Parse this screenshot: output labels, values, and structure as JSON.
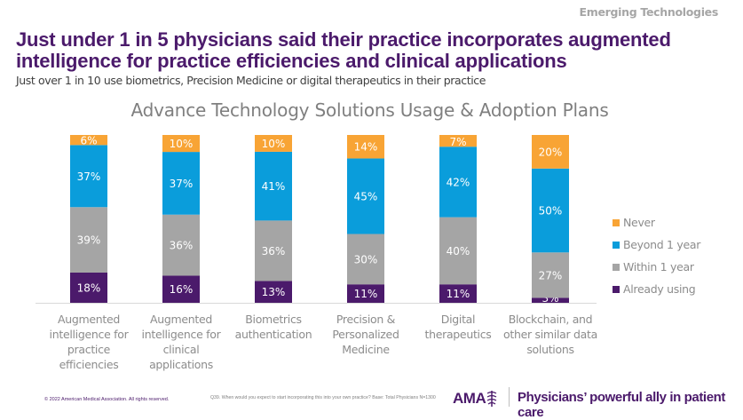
{
  "header": {
    "section_label": "Emerging Technologies",
    "headline": "Just under 1 in 5 physicians said their practice incorporates augmented intelligence for practice efficiencies and clinical applications",
    "subhead": "Just over 1 in 10 use biometrics, Precision Medicine or digital therapeutics in their practice"
  },
  "chart_data": {
    "type": "bar",
    "stacked": true,
    "title": "Advance Technology Solutions Usage & Adoption Plans",
    "xlabel": "",
    "ylabel": "",
    "ylim": [
      0,
      100
    ],
    "grid": false,
    "legend_position": "right",
    "categories": [
      "Augmented intelligence for practice efficiencies",
      "Augmented intelligence for clinical applications",
      "Biometrics authentication",
      "Precision & Personalized Medicine",
      "Digital therapeutics",
      "Blockchain, and other similar data solutions"
    ],
    "category_lines": [
      [
        "Augmented",
        "intelligence for",
        "practice",
        "efficiencies"
      ],
      [
        "Augmented",
        "intelligence for",
        "clinical",
        "applications"
      ],
      [
        "Biometrics",
        "authentication"
      ],
      [
        "Precision &",
        "Personalized",
        "Medicine"
      ],
      [
        "Digital",
        "therapeutics"
      ],
      [
        "Blockchain, and",
        "other similar data",
        "solutions"
      ]
    ],
    "series": [
      {
        "name": "Already using",
        "color": "#4b1a6b",
        "values": [
          18,
          16,
          13,
          11,
          11,
          3
        ]
      },
      {
        "name": "Within 1 year",
        "color": "#a5a5a5",
        "values": [
          39,
          36,
          36,
          30,
          40,
          27
        ]
      },
      {
        "name": "Beyond 1 year",
        "color": "#0a9ddb",
        "values": [
          37,
          37,
          41,
          45,
          42,
          50
        ]
      },
      {
        "name": "Never",
        "color": "#f8a435",
        "values": [
          6,
          10,
          10,
          14,
          7,
          20
        ]
      }
    ],
    "legend_order": [
      "Never",
      "Beyond 1 year",
      "Within 1 year",
      "Already using"
    ],
    "label_format": "{v}%"
  },
  "footer": {
    "copyright": "© 2022 American Medical Association. All rights reserved.",
    "note": "Q39. When would you expect to start incorporating this into your own practice? Base: Total Physicians N=1300",
    "logo_text": "AMA",
    "tagline": "Physicians’ powerful ally in patient care"
  }
}
